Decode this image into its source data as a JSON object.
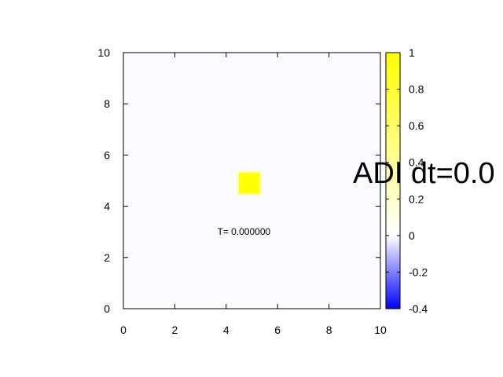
{
  "chart_data": {
    "type": "heatmap",
    "xlim": [
      0,
      10
    ],
    "ylim": [
      0,
      10
    ],
    "x_ticks": [
      0,
      2,
      4,
      6,
      8,
      10
    ],
    "y_ticks": [
      0,
      2,
      4,
      6,
      8,
      10
    ],
    "background_value": 0,
    "cells": [
      {
        "x0": 4.5,
        "x1": 5.3,
        "y0": 4.5,
        "y1": 5.3,
        "value": 1
      }
    ],
    "colorbar": {
      "range": [
        -0.4,
        1
      ],
      "ticks": [
        "1",
        "0.8",
        "0.6",
        "0.4",
        "0.2",
        "0",
        "-0.2",
        "-0.4"
      ],
      "tick_values": [
        1,
        0.8,
        0.6,
        0.4,
        0.2,
        0,
        -0.2,
        -0.4
      ],
      "colors": {
        "min": "#0000ff",
        "zero": "#ffffff",
        "max": "#ffff00"
      }
    },
    "annotation": {
      "text": "T= 0.000000",
      "x": 5.3,
      "y": 3
    }
  },
  "overlay_title": "ADI dt=0.0",
  "grid": false
}
